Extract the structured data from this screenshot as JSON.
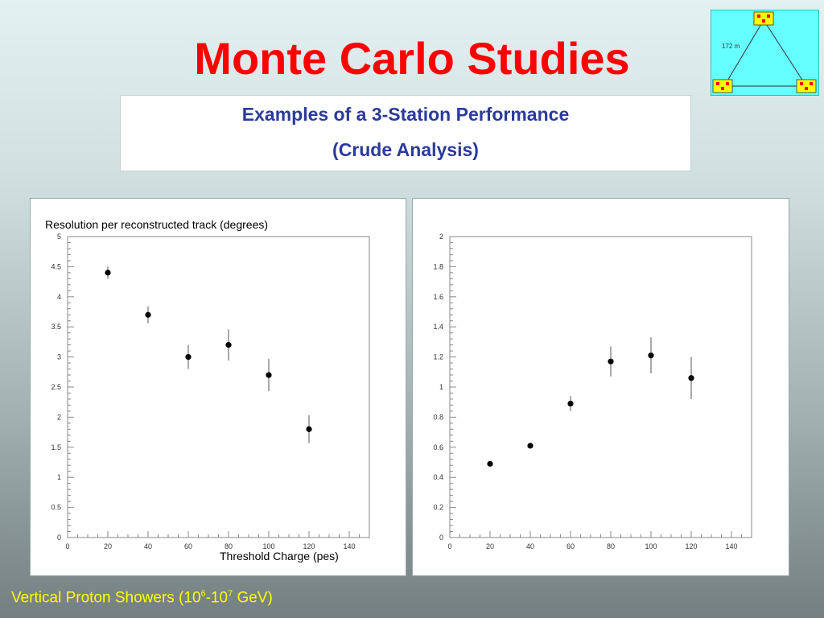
{
  "slide": {
    "title": "Monte Carlo Studies",
    "subtitle_line1": "Examples of a 3-Station Performance",
    "subtitle_line2": "(Crude Analysis)",
    "footer": {
      "prefix": "Vertical Proton Showers (10",
      "exp1": "6",
      "mid": "-10",
      "exp2": "7",
      "suffix": " GeV)"
    },
    "station_diagram": {
      "distance_label": "172 m",
      "station_count": 3,
      "colors": {
        "background": "#66ffff",
        "station": "#ffff00",
        "detector": "#ff0000"
      }
    },
    "colors": {
      "title": "#ff0000",
      "subtitle": "#2b3a9c",
      "footer": "#ffff00"
    }
  },
  "chart_data": [
    {
      "type": "scatter",
      "title": "",
      "ylabel": "Resolution per reconstructed track (degrees)",
      "xlabel": "Threshold Charge (pes)",
      "xlim": [
        0,
        150
      ],
      "ylim": [
        0,
        5
      ],
      "xticks": [
        0,
        20,
        40,
        60,
        80,
        100,
        120,
        140
      ],
      "yticks": [
        0,
        0.5,
        1,
        1.5,
        2,
        2.5,
        3,
        3.5,
        4,
        4.5,
        5
      ],
      "ytick_labels": [
        "0",
        "0.5",
        "1",
        "1.5",
        "2",
        "2.5",
        "3",
        "3.5",
        "4",
        "4.5",
        "5"
      ],
      "points": [
        {
          "x": 20,
          "y": 4.4,
          "err": 0.1
        },
        {
          "x": 40,
          "y": 3.7,
          "err": 0.14
        },
        {
          "x": 60,
          "y": 3.0,
          "err": 0.2
        },
        {
          "x": 80,
          "y": 3.2,
          "err": 0.26
        },
        {
          "x": 100,
          "y": 2.7,
          "err": 0.27
        },
        {
          "x": 120,
          "y": 1.8,
          "err": 0.23
        }
      ]
    },
    {
      "type": "scatter",
      "title": "",
      "ylabel": "",
      "xlabel": "",
      "xlim": [
        0,
        150
      ],
      "ylim": [
        0,
        2
      ],
      "xticks": [
        0,
        20,
        40,
        60,
        80,
        100,
        120,
        140
      ],
      "yticks": [
        0,
        0.2,
        0.4,
        0.6,
        0.8,
        1,
        1.2,
        1.4,
        1.6,
        1.8,
        2
      ],
      "ytick_labels": [
        "0",
        "0.2",
        "0.4",
        "0.6",
        "0.8",
        "1",
        "1.2",
        "1.4",
        "1.6",
        "1.8",
        "2"
      ],
      "points": [
        {
          "x": 20,
          "y": 0.49,
          "err": 0
        },
        {
          "x": 40,
          "y": 0.61,
          "err": 0
        },
        {
          "x": 60,
          "y": 0.89,
          "err": 0.05
        },
        {
          "x": 80,
          "y": 1.17,
          "err": 0.1
        },
        {
          "x": 100,
          "y": 1.21,
          "err": 0.12
        },
        {
          "x": 120,
          "y": 1.06,
          "err": 0.14
        }
      ]
    }
  ]
}
